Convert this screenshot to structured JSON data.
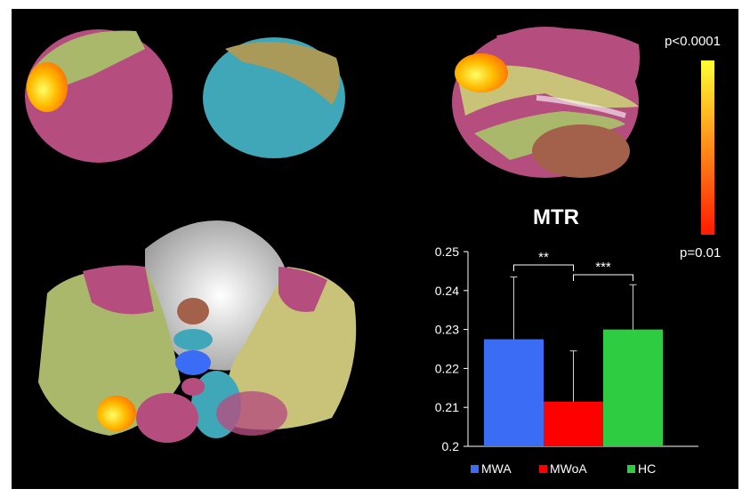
{
  "colorbar": {
    "max_label": "p<0.0001",
    "min_label": "p=0.01",
    "color_top": "#ffff33",
    "color_bottom": "#ff1a00"
  },
  "colors": {
    "mwa": "#3a6cf5",
    "mwoa": "#ff0000",
    "hc": "#2ecc40",
    "background": "#000000"
  },
  "chart_data": {
    "type": "bar",
    "title": "MTR",
    "categories": [
      "MWA",
      "MWoA",
      "HC"
    ],
    "values": [
      0.2275,
      0.2115,
      0.23
    ],
    "errors": [
      0.016,
      0.013,
      0.0115
    ],
    "colors": [
      "#3a6cf5",
      "#ff0000",
      "#2ecc40"
    ],
    "ylim": [
      0.2,
      0.25
    ],
    "yticks": [
      "0.25",
      "0.24",
      "0.23",
      "0.22",
      "0.21",
      "0.2"
    ],
    "grid": false,
    "legend": "bottom",
    "significance": [
      {
        "from": "MWA",
        "to": "MWoA",
        "label": "**"
      },
      {
        "from": "MWoA",
        "to": "HC",
        "label": "***"
      }
    ]
  }
}
